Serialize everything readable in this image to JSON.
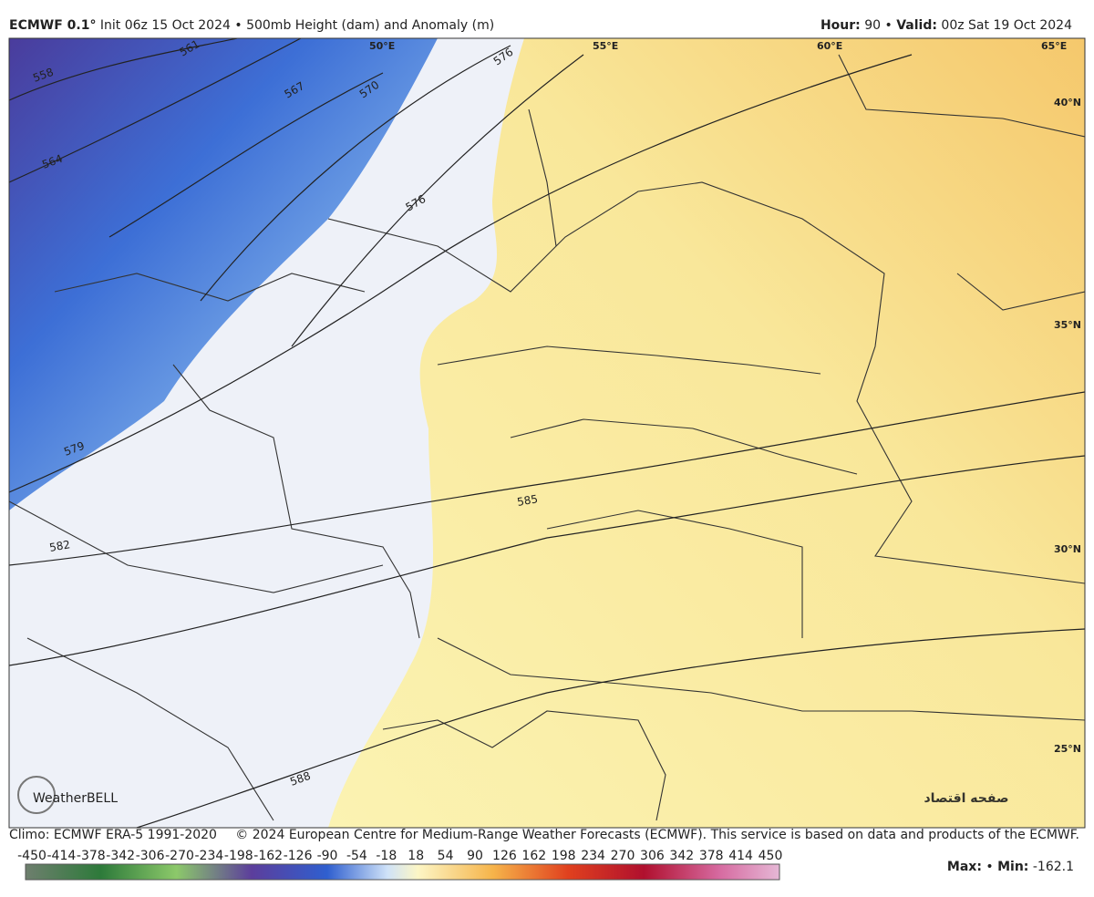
{
  "header": {
    "model": "ECMWF 0.1°",
    "init": "Init 06z 15 Oct 2024",
    "product": "500mb Height (dam) and Anomaly (m)",
    "hour_label": "Hour:",
    "hour": "90",
    "valid_label": "Valid:",
    "valid": "00z Sat 19 Oct 2024"
  },
  "map": {
    "longitudes": [
      "50°E",
      "55°E",
      "60°E",
      "65°E"
    ],
    "latitudes": [
      "40°N",
      "35°N",
      "30°N",
      "25°N"
    ],
    "contours": [
      "558",
      "564",
      "561",
      "567",
      "570",
      "576",
      "576",
      "579",
      "582",
      "585",
      "588"
    ],
    "logo": "WeatherBELL"
  },
  "footer": {
    "climo": "Climo: ECMWF ERA-5 1991-2020",
    "credit": "© 2024 European Centre for Medium-Range Weather Forecasts (ECMWF). This service is based on data and products of the ECMWF."
  },
  "legend": {
    "ticks": [
      -450,
      -414,
      -378,
      -342,
      -306,
      -270,
      -234,
      -198,
      -162,
      -126,
      -90,
      -54,
      -18,
      18,
      54,
      90,
      126,
      162,
      198,
      234,
      270,
      306,
      342,
      378,
      414,
      450
    ],
    "max_label": "Max:",
    "min_label": "Min:",
    "min": "-162.1"
  },
  "watermark": "صفحه اقتصاد"
}
